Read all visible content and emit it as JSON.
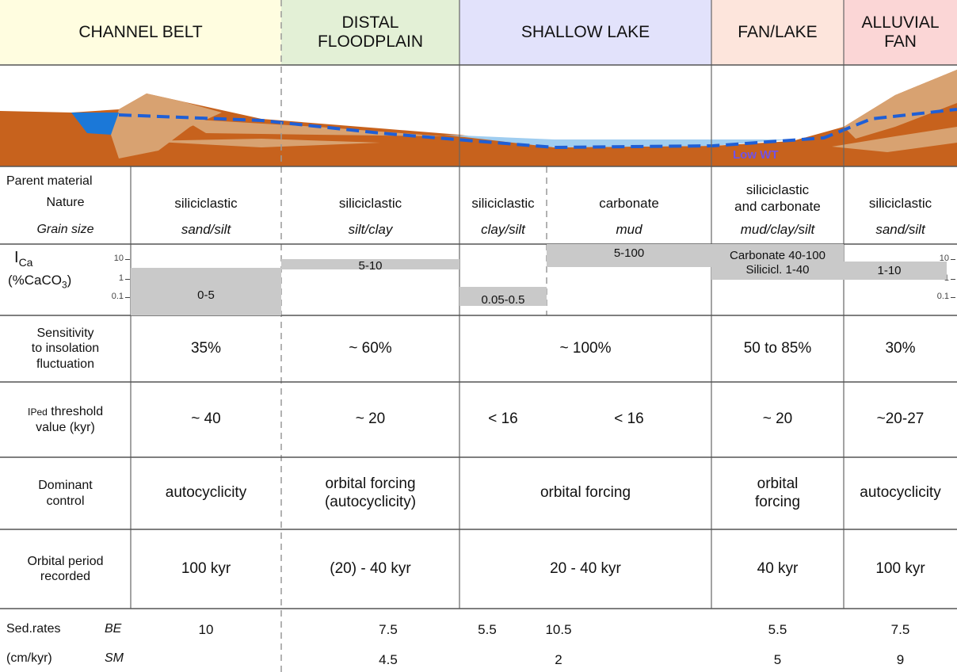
{
  "zones": [
    {
      "label": [
        "CHANNEL BELT"
      ]
    },
    {
      "label": [
        "DISTAL",
        "FLOODPLAIN"
      ]
    },
    {
      "label": [
        "SHALLOW LAKE"
      ]
    },
    {
      "label": [
        "FAN/LAKE"
      ]
    },
    {
      "label": [
        "ALLUVIAL",
        "FAN"
      ]
    }
  ],
  "illustration": {
    "water_table_label": "Low WT"
  },
  "table": {
    "parent_material": {
      "label": "Parent material",
      "nature_label": "Nature",
      "grain_label": "Grain size",
      "nature": [
        [
          "siliciclastic"
        ],
        [
          "siliciclastic"
        ],
        [
          "siliciclastic"
        ],
        [
          "carbonate"
        ],
        [
          "siliciclastic",
          "and carbonate"
        ],
        [
          "siliciclastic"
        ]
      ],
      "grain": [
        "sand/silt",
        "silt/clay",
        "clay/silt",
        "mud",
        "mud/clay/silt",
        "sand/silt"
      ]
    },
    "ica": {
      "symbol": "I",
      "symbol_sub": "Ca",
      "unit_pre": "(%CaCO",
      "unit_sub": "3",
      "unit_post": ")",
      "scale_ticks": [
        "10",
        "1",
        "0.1"
      ],
      "ranges": [
        [
          "0-5"
        ],
        [
          "5-10"
        ],
        [
          "0.05-0.5"
        ],
        [
          "5-100"
        ],
        [
          "Carbonate 40-100",
          "Silicicl. 1-40"
        ],
        [
          "1-10"
        ]
      ]
    },
    "sensitivity": {
      "label": [
        "Sensitivity",
        "to insolation",
        "fluctuation"
      ],
      "values": [
        "35%",
        "~ 60%",
        "~ 100%",
        "50 to 85%",
        "30%"
      ]
    },
    "ped": {
      "symbol": "I",
      "symbol_sub": "Ped",
      "label_rest": " threshold",
      "label_line2": "value (kyr)",
      "values": [
        "~ 40",
        "~ 20",
        "< 16",
        "< 16",
        "~ 20",
        "~20-27"
      ]
    },
    "control": {
      "label": [
        "Dominant",
        "control"
      ],
      "values": [
        [
          "autocyclicity"
        ],
        [
          "orbital forcing",
          "(autocyclicity)"
        ],
        [
          "orbital forcing"
        ],
        [
          "orbital",
          "forcing"
        ],
        [
          "autocyclicity"
        ]
      ]
    },
    "period": {
      "label": [
        "Orbital period",
        "recorded"
      ],
      "values": [
        "100 kyr",
        "(20) - 40 kyr",
        "20 - 40 kyr",
        "40 kyr",
        "100 kyr"
      ]
    },
    "sed_rates": {
      "label": "Sed.rates",
      "unit": "(cm/kyr)",
      "be_label": "BE",
      "sm_label": "SM",
      "be": [
        "10",
        "7.5",
        "5.5",
        "10.5",
        "5.5",
        "7.5"
      ],
      "sm": [
        null,
        "4.5",
        null,
        "2",
        "5",
        "9"
      ]
    }
  }
}
